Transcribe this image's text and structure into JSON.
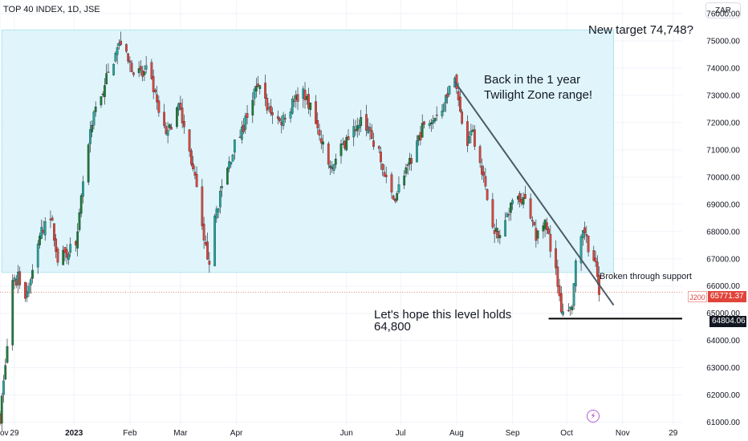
{
  "title": "TOP 40 INDEX, 1D, JSE",
  "currency": "ZAR",
  "annotations": {
    "target": "New target 74,748?",
    "range_line1": "Back in the 1 year",
    "range_line2": "Twilight Zone range!",
    "support": "Broken through support",
    "hope_line1": "Let's hope this level holds",
    "hope_line2": "64,800"
  },
  "price_tags": {
    "symbol": "J200",
    "last": "65771.37",
    "level": "64804.06"
  },
  "colors": {
    "up": "#26a69a",
    "up_dark": "#1e7d38",
    "down": "#e0443b",
    "zone": "#dff5fb",
    "zone_border": "#b3e5ef",
    "trendline": "#4d5a66",
    "text": "#131722"
  },
  "chart_data": {
    "type": "candlestick",
    "title": "TOP 40 INDEX, 1D, JSE",
    "currency": "ZAR",
    "y_ticks": [
      61000,
      62000,
      63000,
      64000,
      65000,
      66000,
      67000,
      68000,
      69000,
      70000,
      71000,
      72000,
      73000,
      74000,
      75000,
      76000
    ],
    "y_tick_labels": [
      "61000.00",
      "62000.00",
      "63000.00",
      "64000.00",
      "65000.00",
      "66000.00",
      "67000.00",
      "68000.00",
      "69000.00",
      "70000.00",
      "71000.00",
      "72000.00",
      "73000.00",
      "74000.00",
      "75000.00",
      "76000.00"
    ],
    "ylim": [
      60900,
      76500
    ],
    "x_range": [
      "2022-11-21",
      "2023-12-04"
    ],
    "x_ticks": [
      {
        "date": "2022-11-21",
        "label": "ov"
      },
      {
        "date": "2022-11-29",
        "label": "29"
      },
      {
        "date": "2023-01-01",
        "label": "2023"
      },
      {
        "date": "2023-02-01",
        "label": "Feb"
      },
      {
        "date": "2023-03-01",
        "label": "Mar"
      },
      {
        "date": "2023-04-01",
        "label": "Apr"
      },
      {
        "date": "2023-06-01",
        "label": "Jun"
      },
      {
        "date": "2023-07-01",
        "label": "Jul"
      },
      {
        "date": "2023-08-01",
        "label": "Aug"
      },
      {
        "date": "2023-09-01",
        "label": "Sep"
      },
      {
        "date": "2023-10-01",
        "label": "Oct"
      },
      {
        "date": "2023-11-01",
        "label": "Nov"
      },
      {
        "date": "2023-11-29",
        "label": "29"
      }
    ],
    "price_path": [
      [
        "2022-11-21",
        61200
      ],
      [
        "2022-11-25",
        63800
      ],
      [
        "2022-11-28",
        66000
      ],
      [
        "2022-12-01",
        66300
      ],
      [
        "2022-12-05",
        65700
      ],
      [
        "2022-12-09",
        66400
      ],
      [
        "2022-12-13",
        67800
      ],
      [
        "2022-12-16",
        68300
      ],
      [
        "2022-12-20",
        68200
      ],
      [
        "2022-12-23",
        67000
      ],
      [
        "2022-12-28",
        67200
      ],
      [
        "2023-01-03",
        67800
      ],
      [
        "2023-01-06",
        69800
      ],
      [
        "2023-01-10",
        71500
      ],
      [
        "2023-01-13",
        72500
      ],
      [
        "2023-01-17",
        73200
      ],
      [
        "2023-01-20",
        73800
      ],
      [
        "2023-01-24",
        74500
      ],
      [
        "2023-01-27",
        75000
      ],
      [
        "2023-01-31",
        74200
      ],
      [
        "2023-02-03",
        74000
      ],
      [
        "2023-02-07",
        73700
      ],
      [
        "2023-02-10",
        73900
      ],
      [
        "2023-02-14",
        73200
      ],
      [
        "2023-02-17",
        72300
      ],
      [
        "2023-02-21",
        71500
      ],
      [
        "2023-02-24",
        72000
      ],
      [
        "2023-02-28",
        72600
      ],
      [
        "2023-03-03",
        71800
      ],
      [
        "2023-03-07",
        70600
      ],
      [
        "2023-03-10",
        69500
      ],
      [
        "2023-03-14",
        67500
      ],
      [
        "2023-03-17",
        67000
      ],
      [
        "2023-03-21",
        68800
      ],
      [
        "2023-03-24",
        69600
      ],
      [
        "2023-03-28",
        70500
      ],
      [
        "2023-03-31",
        71200
      ],
      [
        "2023-04-04",
        71600
      ],
      [
        "2023-04-07",
        72300
      ],
      [
        "2023-04-11",
        73000
      ],
      [
        "2023-04-14",
        73500
      ],
      [
        "2023-04-18",
        72600
      ],
      [
        "2023-04-21",
        72400
      ],
      [
        "2023-04-25",
        72000
      ],
      [
        "2023-04-28",
        72300
      ],
      [
        "2023-05-03",
        72800
      ],
      [
        "2023-05-08",
        73200
      ],
      [
        "2023-05-12",
        72500
      ],
      [
        "2023-05-17",
        71500
      ],
      [
        "2023-05-22",
        70400
      ],
      [
        "2023-05-26",
        70600
      ],
      [
        "2023-05-31",
        71300
      ],
      [
        "2023-06-05",
        71700
      ],
      [
        "2023-06-09",
        72300
      ],
      [
        "2023-06-14",
        71600
      ],
      [
        "2023-06-19",
        70800
      ],
      [
        "2023-06-23",
        69800
      ],
      [
        "2023-06-27",
        69200
      ],
      [
        "2023-06-30",
        69600
      ],
      [
        "2023-07-05",
        70300
      ],
      [
        "2023-07-10",
        71200
      ],
      [
        "2023-07-14",
        72000
      ],
      [
        "2023-07-19",
        72300
      ],
      [
        "2023-07-24",
        72600
      ],
      [
        "2023-07-28",
        73300
      ],
      [
        "2023-07-31",
        73700
      ],
      [
        "2023-08-03",
        72300
      ],
      [
        "2023-08-07",
        71200
      ],
      [
        "2023-08-10",
        71600
      ],
      [
        "2023-08-14",
        70700
      ],
      [
        "2023-08-17",
        69500
      ],
      [
        "2023-08-21",
        68400
      ],
      [
        "2023-08-24",
        67700
      ],
      [
        "2023-08-28",
        68300
      ],
      [
        "2023-08-31",
        69100
      ],
      [
        "2023-09-04",
        69400
      ],
      [
        "2023-09-07",
        69200
      ],
      [
        "2023-09-11",
        68600
      ],
      [
        "2023-09-14",
        67800
      ],
      [
        "2023-09-18",
        68400
      ],
      [
        "2023-09-21",
        67800
      ],
      [
        "2023-09-25",
        66500
      ],
      [
        "2023-09-28",
        65200
      ],
      [
        "2023-10-02",
        64900
      ],
      [
        "2023-10-04",
        65400
      ],
      [
        "2023-10-06",
        66700
      ],
      [
        "2023-10-09",
        67600
      ],
      [
        "2023-10-11",
        68000
      ],
      [
        "2023-10-13",
        67500
      ],
      [
        "2023-10-16",
        67000
      ],
      [
        "2023-10-18",
        66300
      ],
      [
        "2023-10-19",
        65771
      ]
    ],
    "zone": {
      "x_start": "2022-11-22",
      "x_end": "2023-10-27",
      "y_low": 66500,
      "y_high": 75400
    },
    "trendline": {
      "start": [
        "2023-07-31",
        73500
      ],
      "end": [
        "2023-10-27",
        65300
      ]
    },
    "support_line": {
      "x_start": "2023-09-21",
      "x_end": "2023-12-04",
      "y": 64804.06
    },
    "current_price": 65771.37
  }
}
